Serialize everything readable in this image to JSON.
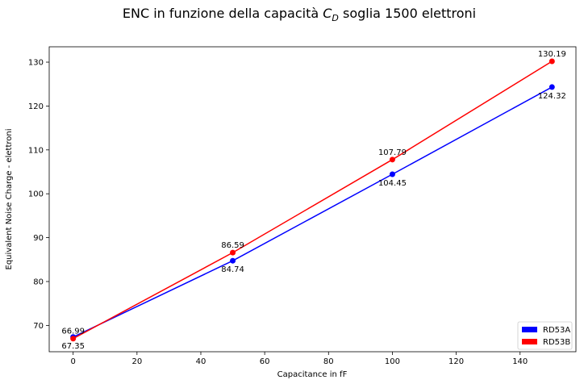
{
  "chart_data": {
    "type": "line",
    "title_prefix": "ENC in funzione della capacità ",
    "title_var": "C",
    "title_sub": "D",
    "title_suffix": " soglia 1500 elettroni",
    "xlabel": "Capacitance in fF",
    "ylabel": "Equivalent Noise Charge - elettroni",
    "xlim": [
      -7.5,
      157.5
    ],
    "ylim": [
      64,
      133.5
    ],
    "x_ticks": [
      0,
      20,
      40,
      60,
      80,
      100,
      120,
      140
    ],
    "y_ticks": [
      70,
      80,
      90,
      100,
      110,
      120,
      130
    ],
    "grid": false,
    "legend_position": "lower-right",
    "x": [
      0,
      50,
      100,
      150
    ],
    "series": [
      {
        "name": "RD53A",
        "color": "#0000ff",
        "values": [
          67.35,
          84.74,
          104.45,
          124.32
        ],
        "labels": [
          "67.35",
          "84.74",
          "104.45",
          "124.32"
        ],
        "label_position": "below"
      },
      {
        "name": "RD53B",
        "color": "#ff0000",
        "values": [
          66.99,
          86.59,
          107.79,
          130.19
        ],
        "labels": [
          "66.99",
          "86.59",
          "107.79",
          "130.19"
        ],
        "label_position": "above"
      }
    ]
  }
}
